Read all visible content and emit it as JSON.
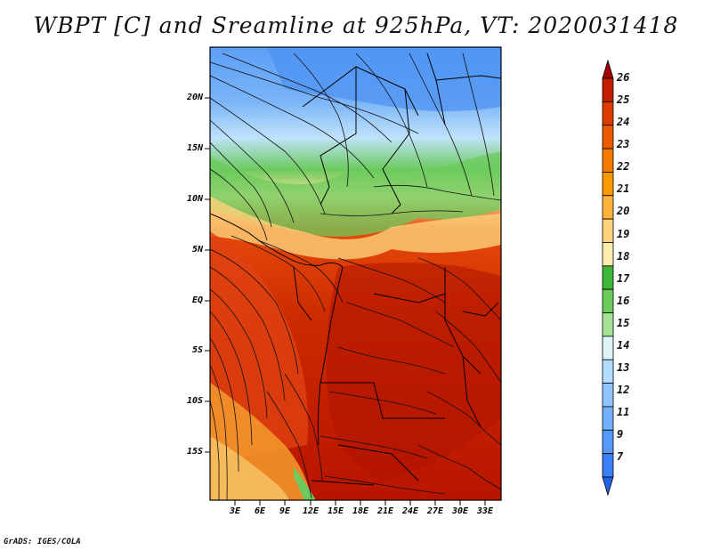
{
  "title": "WBPT [C] and Sreamline at 925hPa, VT: 2020031418",
  "credit": "GrADS: IGES/COLA",
  "map": {
    "lat_labels": [
      "20N",
      "15N",
      "10N",
      "5N",
      "EQ",
      "5S",
      "10S",
      "15S"
    ],
    "lon_labels": [
      "3E",
      "6E",
      "9E",
      "12E",
      "15E",
      "18E",
      "21E",
      "24E",
      "27E",
      "30E",
      "33E"
    ]
  },
  "colorbar": {
    "labels": [
      "26",
      "25",
      "24",
      "23",
      "22",
      "21",
      "20",
      "19",
      "18",
      "17",
      "16",
      "15",
      "14",
      "13",
      "12",
      "11",
      "9",
      "7"
    ],
    "colors": [
      "#a50000",
      "#c41e00",
      "#dc3c00",
      "#eb5a00",
      "#f57a00",
      "#fb9900",
      "#fdb33c",
      "#fcd27a",
      "#fcedae",
      "#3fb637",
      "#6bcc5c",
      "#a5e296",
      "#dff4f8",
      "#b4dcff",
      "#91c5ff",
      "#73b1ff",
      "#5499fb",
      "#3a7ff5",
      "#2561e8"
    ]
  }
}
